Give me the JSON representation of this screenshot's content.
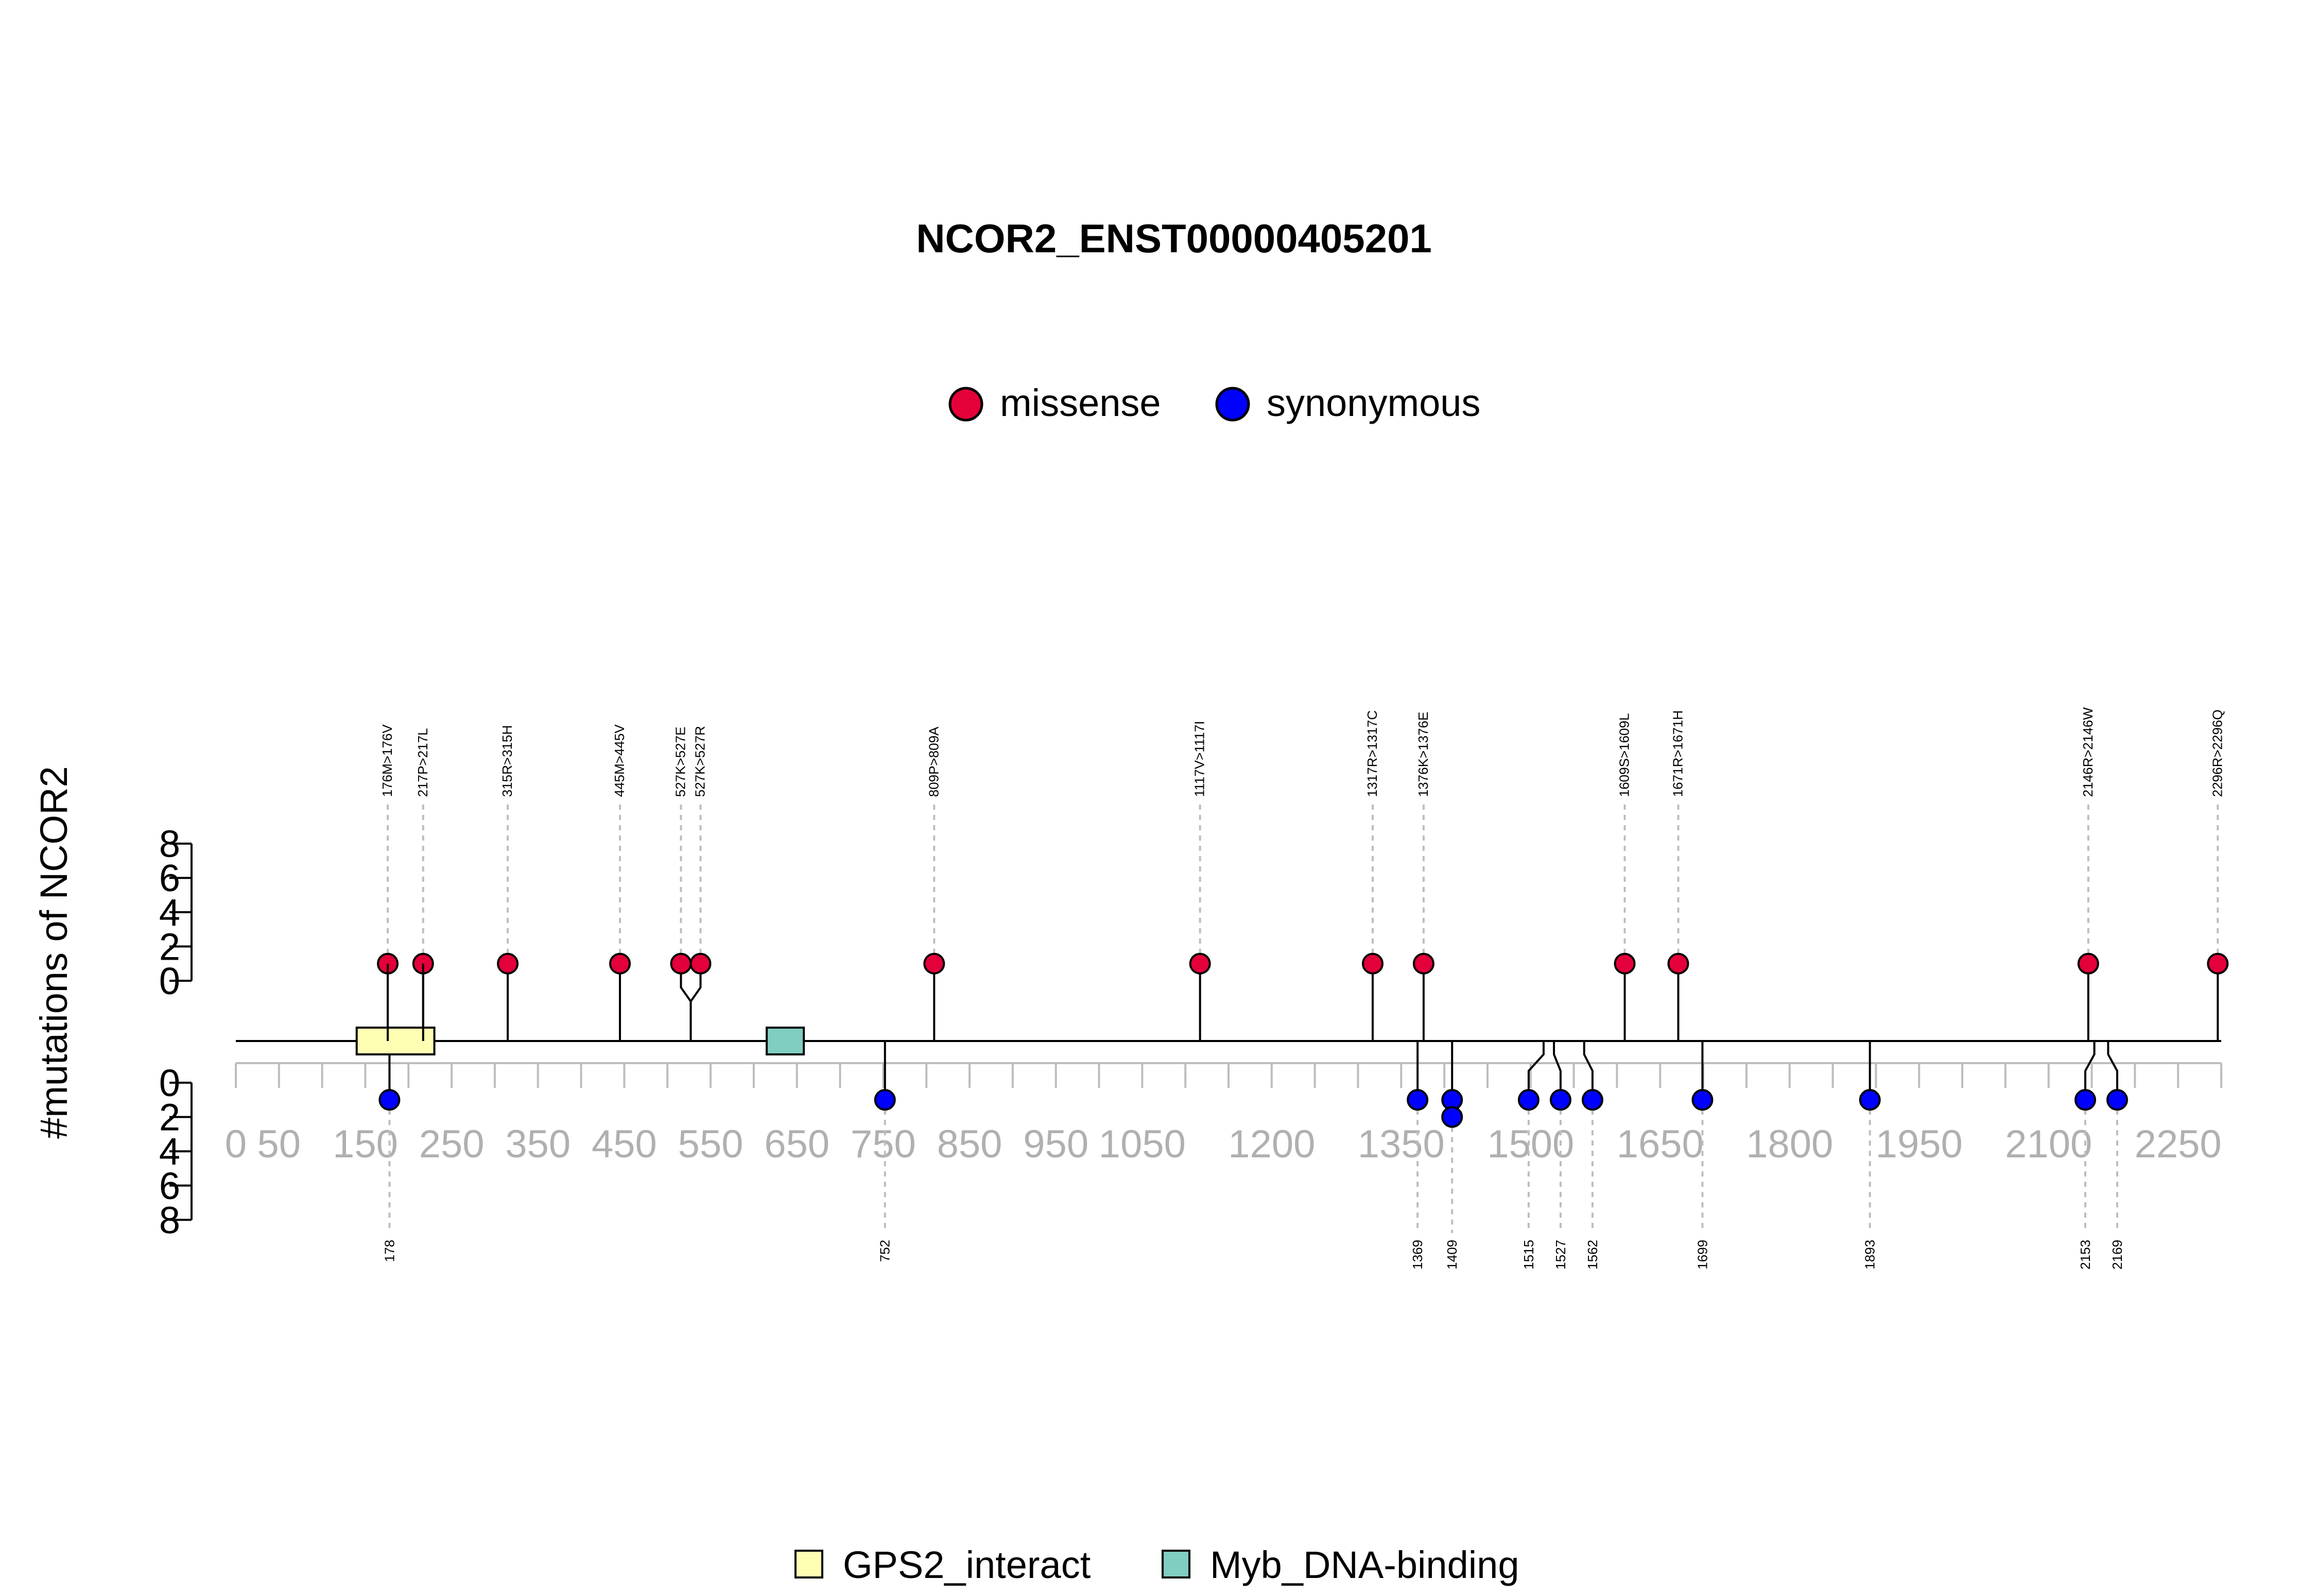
{
  "chart_data": {
    "type": "lollipop",
    "title": "NCOR2_ENST00000405201",
    "ylabel": "#mutations of NCOR2",
    "xlim": [
      0,
      2300
    ],
    "ylim_top": [
      0,
      8
    ],
    "ylim_bottom": [
      0,
      8
    ],
    "ytick_labels": [
      "0",
      "2",
      "4",
      "6",
      "8"
    ],
    "xtick_labels": [
      "0",
      "50",
      "150",
      "250",
      "350",
      "450",
      "550",
      "650",
      "750",
      "850",
      "950",
      "1050",
      "1200",
      "1350",
      "1500",
      "1650",
      "1800",
      "1950",
      "2100",
      "2250"
    ],
    "legend": [
      {
        "label": "missense",
        "color": "#E4003A"
      },
      {
        "label": "synonymous",
        "color": "#0000FF"
      }
    ],
    "domains_legend": [
      {
        "label": "GPS2_interact",
        "color": "#FFFFB3"
      },
      {
        "label": "Myb_DNA-binding",
        "color": "#80CDC1"
      }
    ],
    "domains": [
      {
        "name": "GPS2_interact",
        "start": 140,
        "end": 230
      },
      {
        "name": "Myb_DNA-binding",
        "start": 615,
        "end": 658
      }
    ],
    "missense": [
      {
        "pos": 176,
        "count": 1,
        "label": "176M>176V"
      },
      {
        "pos": 217,
        "count": 1,
        "label": "217P>217L"
      },
      {
        "pos": 315,
        "count": 1,
        "label": "315R>315H"
      },
      {
        "pos": 445,
        "count": 1,
        "label": "445M>445V"
      },
      {
        "pos": 527,
        "count": 1,
        "label": "527K>527E"
      },
      {
        "pos": 527,
        "count": 1,
        "label": "527K>527R"
      },
      {
        "pos": 809,
        "count": 1,
        "label": "809P>809A"
      },
      {
        "pos": 1117,
        "count": 1,
        "label": "1117V>1117I"
      },
      {
        "pos": 1317,
        "count": 1,
        "label": "1317R>1317C"
      },
      {
        "pos": 1376,
        "count": 1,
        "label": "1376K>1376E"
      },
      {
        "pos": 1609,
        "count": 1,
        "label": "1609S>1609L"
      },
      {
        "pos": 1671,
        "count": 1,
        "label": "1671R>1671H"
      },
      {
        "pos": 2146,
        "count": 1,
        "label": "2146R>2146W"
      },
      {
        "pos": 2296,
        "count": 1,
        "label": "2296R>2296Q"
      }
    ],
    "synonymous": [
      {
        "pos": 178,
        "count": 1,
        "label": "178"
      },
      {
        "pos": 752,
        "count": 1,
        "label": "752"
      },
      {
        "pos": 1369,
        "count": 1,
        "label": "1369"
      },
      {
        "pos": 1409,
        "count": 2,
        "label": "1409"
      },
      {
        "pos": 1515,
        "count": 1,
        "label": "1515"
      },
      {
        "pos": 1527,
        "count": 1,
        "label": "1527"
      },
      {
        "pos": 1562,
        "count": 1,
        "label": "1562"
      },
      {
        "pos": 1699,
        "count": 1,
        "label": "1699"
      },
      {
        "pos": 1893,
        "count": 1,
        "label": "1893"
      },
      {
        "pos": 2153,
        "count": 1,
        "label": "2153"
      },
      {
        "pos": 2169,
        "count": 1,
        "label": "2169"
      }
    ]
  }
}
